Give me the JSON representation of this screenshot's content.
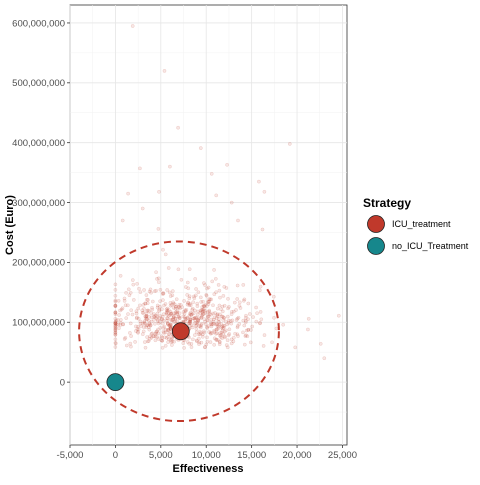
{
  "chart_data": {
    "type": "scatter",
    "xlabel": "Effectiveness",
    "ylabel": "Cost (Euro)",
    "xlim": [
      -5000,
      25500
    ],
    "ylim": [
      -105000000,
      630000000
    ],
    "x_ticks": [
      -5000,
      0,
      5000,
      10000,
      15000,
      20000,
      25000
    ],
    "x_tick_labels": [
      "-5,000",
      "0",
      "5,000",
      "10,000",
      "15,000",
      "20,000",
      "25,000"
    ],
    "y_ticks": [
      0,
      100000000,
      200000000,
      300000000,
      400000000,
      500000000,
      600000000
    ],
    "y_tick_labels": [
      "0",
      "100,000,000",
      "200,000,000",
      "300,000,000",
      "400,000,000",
      "500,000,000",
      "600,000,000"
    ],
    "grid": true,
    "legend": {
      "title": "Strategy",
      "placement": "right",
      "entries": [
        {
          "label": "ICU_treatment",
          "color": "#c0392b"
        },
        {
          "label": "no_ICU_Treatment",
          "color": "#16878c"
        }
      ]
    },
    "series": [
      {
        "name": "ICU_treatment",
        "color": "#c0392b",
        "mean": {
          "x": 7200,
          "y": 85000000
        },
        "ellipse": {
          "cx": 7000,
          "cy": 85000000,
          "rx": 11000,
          "ry": 150000000
        },
        "cloud": {
          "n": 700,
          "x_range": [
            0,
            25000
          ],
          "y_range": [
            0,
            600000000
          ]
        },
        "outliers": [
          {
            "x": 1900,
            "y": 595000000
          },
          {
            "x": 5400,
            "y": 520000000
          },
          {
            "x": 6900,
            "y": 425000000
          },
          {
            "x": 9400,
            "y": 391000000
          },
          {
            "x": 19200,
            "y": 398000000
          },
          {
            "x": 1400,
            "y": 315000000
          },
          {
            "x": 2700,
            "y": 357000000
          },
          {
            "x": 3000,
            "y": 290000000
          },
          {
            "x": 4800,
            "y": 318000000
          },
          {
            "x": 6000,
            "y": 360000000
          },
          {
            "x": 10600,
            "y": 348000000
          },
          {
            "x": 11100,
            "y": 312000000
          },
          {
            "x": 12300,
            "y": 363000000
          },
          {
            "x": 12800,
            "y": 300000000
          },
          {
            "x": 15800,
            "y": 335000000
          },
          {
            "x": 16400,
            "y": 318000000
          },
          {
            "x": 13500,
            "y": 270000000
          },
          {
            "x": 16200,
            "y": 255000000
          },
          {
            "x": 24600,
            "y": 111000000
          },
          {
            "x": 22600,
            "y": 64000000
          },
          {
            "x": 21200,
            "y": 88000000
          },
          {
            "x": 19800,
            "y": 58000000
          },
          {
            "x": 23000,
            "y": 40000000
          },
          {
            "x": 800,
            "y": 270000000
          }
        ]
      },
      {
        "name": "no_ICU_Treatment",
        "color": "#16878c",
        "mean": {
          "x": 0,
          "y": 0
        },
        "cloud": {
          "n": 0
        }
      }
    ]
  }
}
